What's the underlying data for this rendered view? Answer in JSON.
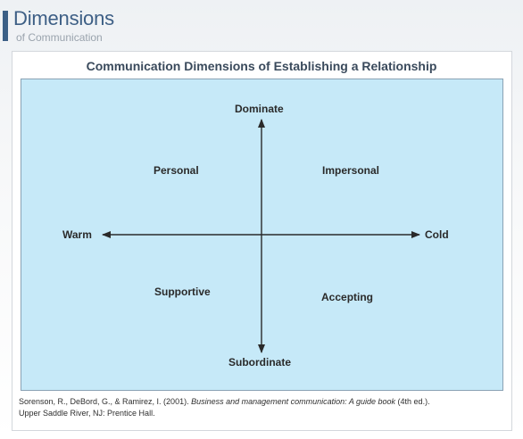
{
  "header": {
    "title": "Dimensions",
    "subtitle": "of Communication"
  },
  "diagram": {
    "title": "Communication Dimensions of Establishing a Relationship",
    "axes": {
      "top": "Dominate",
      "bottom": "Subordinate",
      "left": "Warm",
      "right": "Cold"
    },
    "quadrants": {
      "top_left": "Personal",
      "top_right": "Impersonal",
      "bottom_left": "Supportive",
      "bottom_right": "Accepting"
    }
  },
  "citation": {
    "authors": "Sorenson, R., DeBord, G., & Ramirez, I. (2001). ",
    "title": "Business and management communication: A guide book",
    "edition": " (4th ed.).",
    "publisher": "Upper Saddle River, NJ: Prentice Hall."
  },
  "colors": {
    "header_accent": "#3b5f86",
    "diagram_fill": "#c6e9f8",
    "axis_line": "#2a2a2a"
  }
}
